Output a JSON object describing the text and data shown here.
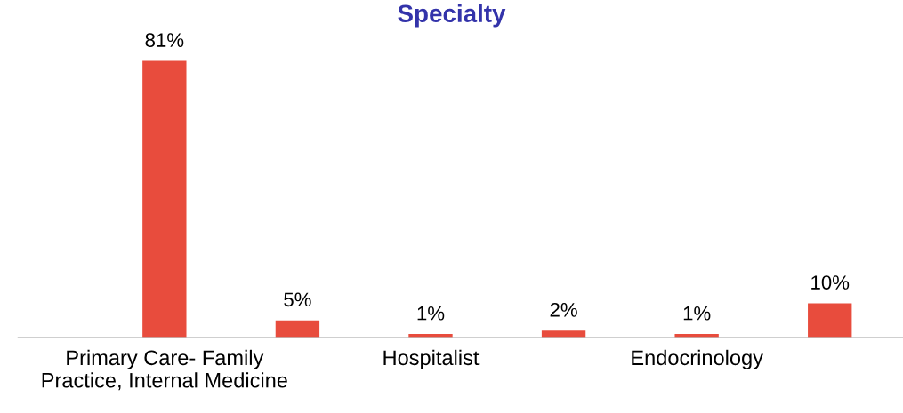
{
  "chart_data": {
    "type": "bar",
    "title": "Specialty",
    "categories": [
      "Primary Care- Family\nPractice, Internal Medicine",
      null,
      "Hospitalist",
      null,
      "Endocrinology",
      null
    ],
    "values": [
      81,
      5,
      1,
      2,
      1,
      10
    ],
    "value_labels": [
      "81%",
      "5%",
      "1%",
      "2%",
      "1%",
      "10%"
    ],
    "color": "#e84c3d",
    "tick_labels": "x",
    "grid": false,
    "legend": false
  }
}
